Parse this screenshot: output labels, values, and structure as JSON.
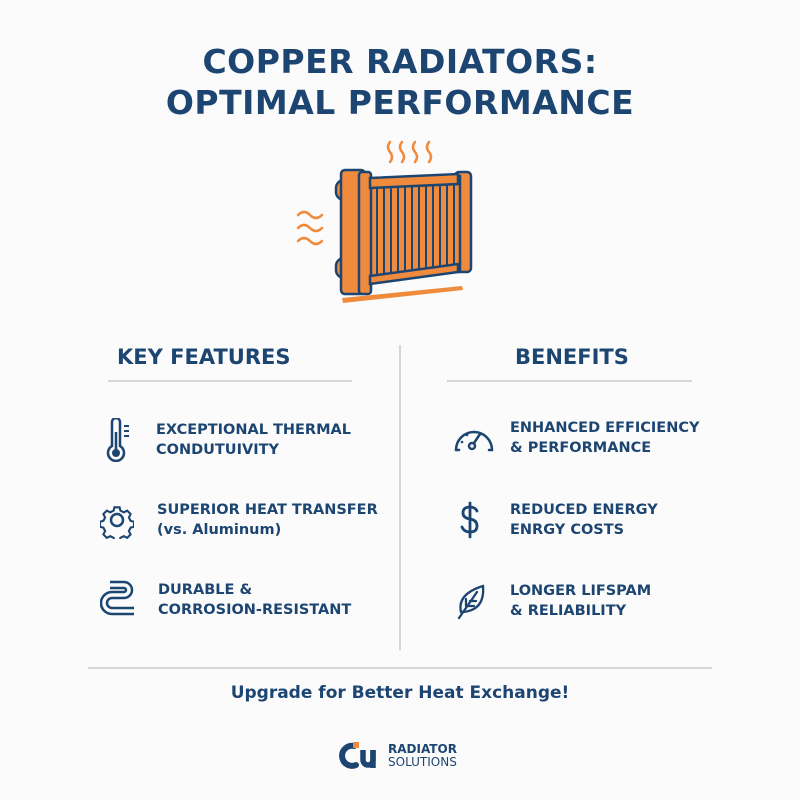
{
  "title": {
    "line1": "COPPER RADIATORS:",
    "line2": "OPTIMAL PERFORMANCE"
  },
  "colors": {
    "navy": "#1d4572",
    "copper": "#f08a3c"
  },
  "features": {
    "heading": "KEY FEATURES",
    "items": [
      {
        "icon": "thermometer-icon",
        "line1": "EXCEPTIONAL THERMAL",
        "line2": "CONDUTUIVITY"
      },
      {
        "icon": "gear-icon",
        "line1": "SUPERIOR HEAT TRANSFER",
        "line2": "(vs. Aluminum)"
      },
      {
        "icon": "coiled-pipe-icon",
        "line1": "DURABLE &",
        "line2": "CORROSION-RESISTANT"
      }
    ]
  },
  "benefits": {
    "heading": "BENEFITS",
    "items": [
      {
        "icon": "gauge-icon",
        "line1": "ENHANCED EFFICIENCY",
        "line2": "& PERFORMANCE"
      },
      {
        "icon": "dollar-icon",
        "line1": "REDUCED ENERGY",
        "line2": "ENRGY COSTS"
      },
      {
        "icon": "leaf-icon",
        "line1": "LONGER LIFSPAM",
        "line2": "& RELIABILITY"
      }
    ]
  },
  "tagline": "Upgrade for Better Heat Exchange!",
  "logo": {
    "mark": "Cu",
    "line1": "RADIATOR",
    "line2": "SOLUTIONS"
  }
}
